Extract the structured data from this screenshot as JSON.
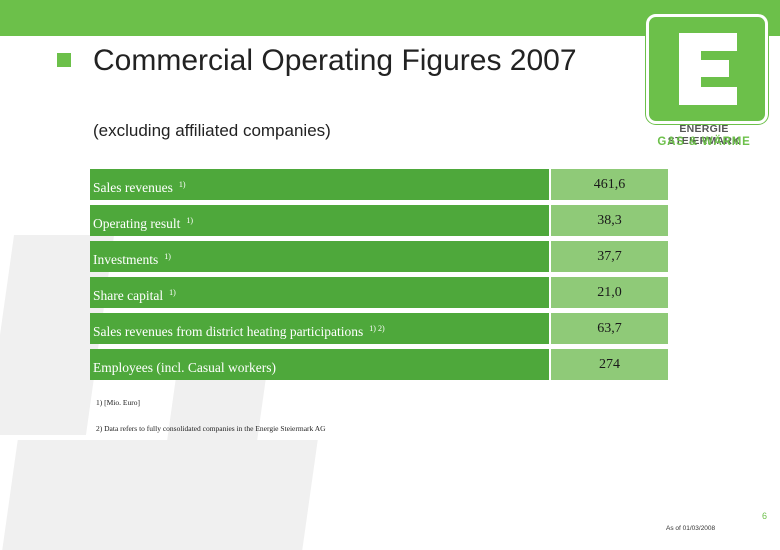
{
  "slide": {
    "title": "Commercial Operating Figures 2007",
    "subtitle": "(excluding affiliated companies)",
    "page_number": "6",
    "as_of": "As of 01/03/2008"
  },
  "logo": {
    "line1": "ENERGIE STEIERMARK",
    "line2": "GAS & WÄRME"
  },
  "table": {
    "rows": [
      {
        "label": "Sales revenues",
        "note": "1)",
        "value": "461,6"
      },
      {
        "label": "Operating result",
        "note": "1)",
        "value": "38,3"
      },
      {
        "label": "Investments",
        "note": "1)",
        "value": "37,7"
      },
      {
        "label": "Share capital",
        "note": "1)",
        "value": "21,0"
      },
      {
        "label": "Sales revenues from district heating participations",
        "note": "1) 2)",
        "value": "63,7"
      },
      {
        "label": "Employees (incl. Casual workers)",
        "note": "",
        "value": "274"
      }
    ]
  },
  "footnotes": {
    "f1": "1) [Mio. Euro]",
    "f2": "2) Data refers to fully consolidated companies in the Energie Steiermark AG"
  },
  "colors": {
    "brand_green": "#6cc04a",
    "label_green": "#4ea83b",
    "value_green": "#8fca78"
  }
}
